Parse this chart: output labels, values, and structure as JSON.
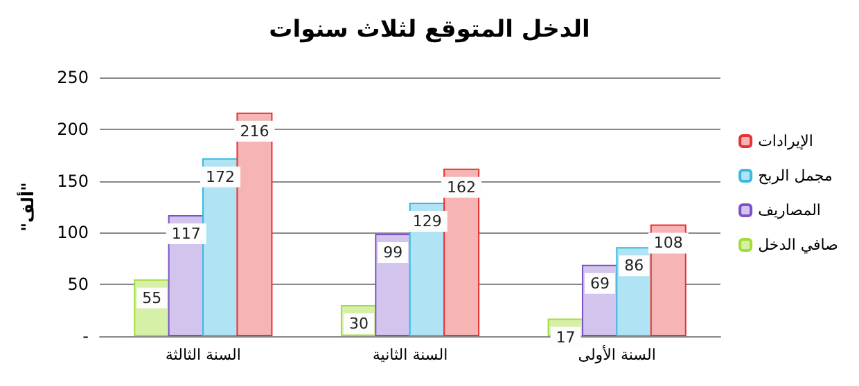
{
  "chart_data": {
    "type": "bar",
    "title": "الدخل المتوقع لثلاث سنوات",
    "ylabel": "\"ألف\"",
    "categories": [
      "السنة الثالثة",
      "السنة الثانية",
      "السنة الأولى"
    ],
    "series": [
      {
        "name": "صافي الدخل",
        "color": "#d6f0a8",
        "values": [
          55,
          30,
          17
        ]
      },
      {
        "name": "المصاريف",
        "color": "#d2c4ec",
        "values": [
          117,
          99,
          69
        ]
      },
      {
        "name": "مجمل الربح",
        "color": "#b0e4f4",
        "values": [
          172,
          129,
          86
        ]
      },
      {
        "name": "الإيرادات",
        "color": "#f6b4b4",
        "values": [
          216,
          162,
          108
        ]
      }
    ],
    "ylim": [
      0,
      250
    ],
    "yticks": [
      {
        "value": 0,
        "label": "-"
      },
      50,
      100,
      150,
      200,
      250
    ],
    "grid": "y",
    "legend": "right",
    "data_labels": true
  }
}
